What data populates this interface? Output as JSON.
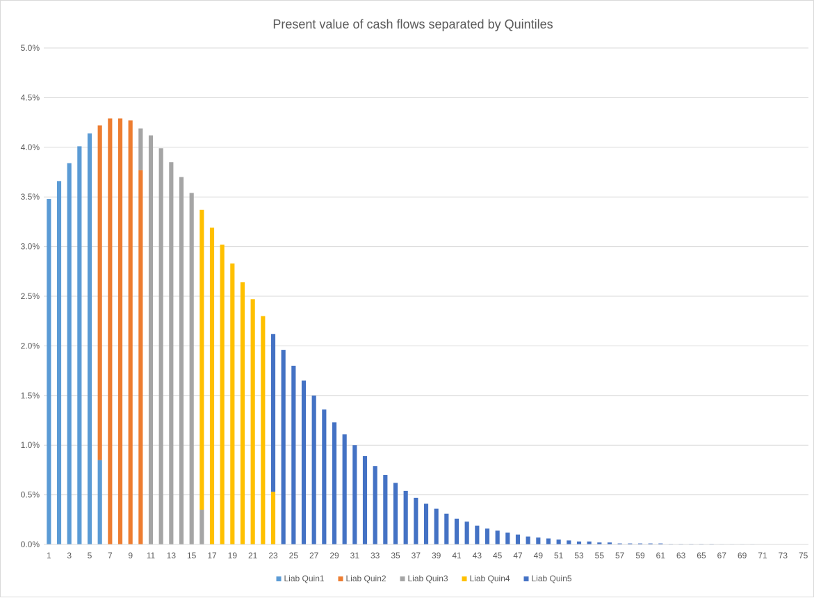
{
  "chart_data": {
    "type": "bar",
    "stacked": true,
    "title": "Present value of cash flows separated by Quintiles",
    "xlabel": "",
    "ylabel": "",
    "ylim": [
      0,
      0.05
    ],
    "y_tick_values": [
      0,
      0.005,
      0.01,
      0.015,
      0.02,
      0.025,
      0.03,
      0.035,
      0.04,
      0.045,
      0.05
    ],
    "y_tick_labels": [
      "0.0%",
      "0.5%",
      "1.0%",
      "1.5%",
      "2.0%",
      "2.5%",
      "3.0%",
      "3.5%",
      "4.0%",
      "4.5%",
      "5.0%"
    ],
    "x_tick_labels": [
      "1",
      "3",
      "5",
      "7",
      "9",
      "11",
      "13",
      "15",
      "17",
      "19",
      "21",
      "23",
      "25",
      "27",
      "29",
      "31",
      "33",
      "35",
      "37",
      "39",
      "41",
      "43",
      "45",
      "47",
      "49",
      "51",
      "53",
      "55",
      "57",
      "59",
      "61",
      "63",
      "65",
      "67",
      "69",
      "71",
      "73",
      "75"
    ],
    "grid": true,
    "legend_position": "bottom",
    "categories": [
      1,
      2,
      3,
      4,
      5,
      6,
      7,
      8,
      9,
      10,
      11,
      12,
      13,
      14,
      15,
      16,
      17,
      18,
      19,
      20,
      21,
      22,
      23,
      24,
      25,
      26,
      27,
      28,
      29,
      30,
      31,
      32,
      33,
      34,
      35,
      36,
      37,
      38,
      39,
      40,
      41,
      42,
      43,
      44,
      45,
      46,
      47,
      48,
      49,
      50,
      51,
      52,
      53,
      54,
      55,
      56,
      57,
      58,
      59,
      60,
      61,
      62,
      63,
      64,
      65,
      66,
      67,
      68,
      69,
      70,
      71,
      72,
      73,
      74,
      75
    ],
    "series": [
      {
        "name": "Liab Quin1",
        "color": "#5B9BD5",
        "values": [
          0.0348,
          0.0366,
          0.0384,
          0.0401,
          0.0414,
          0.0085,
          0,
          0,
          0,
          0,
          0,
          0,
          0,
          0,
          0,
          0,
          0,
          0,
          0,
          0,
          0,
          0,
          0,
          0,
          0,
          0,
          0,
          0,
          0,
          0,
          0,
          0,
          0,
          0,
          0,
          0,
          0,
          0,
          0,
          0,
          0,
          0,
          0,
          0,
          0,
          0,
          0,
          0,
          0,
          0,
          0,
          0,
          0,
          0,
          0,
          0,
          0,
          0,
          0,
          0,
          0,
          0,
          0,
          0,
          0,
          0,
          0,
          0,
          0,
          0,
          0,
          0,
          0,
          0,
          0
        ]
      },
      {
        "name": "Liab Quin2",
        "color": "#ED7D31",
        "values": [
          0,
          0,
          0,
          0,
          0,
          0.0337,
          0.0429,
          0.0429,
          0.0427,
          0.0377,
          0,
          0,
          0,
          0,
          0,
          0,
          0,
          0,
          0,
          0,
          0,
          0,
          0,
          0,
          0,
          0,
          0,
          0,
          0,
          0,
          0,
          0,
          0,
          0,
          0,
          0,
          0,
          0,
          0,
          0,
          0,
          0,
          0,
          0,
          0,
          0,
          0,
          0,
          0,
          0,
          0,
          0,
          0,
          0,
          0,
          0,
          0,
          0,
          0,
          0,
          0,
          0,
          0,
          0,
          0,
          0,
          0,
          0,
          0,
          0,
          0,
          0,
          0,
          0,
          0
        ]
      },
      {
        "name": "Liab Quin3",
        "color": "#A5A5A5",
        "values": [
          0,
          0,
          0,
          0,
          0,
          0,
          0,
          0,
          0,
          0.0042,
          0.0412,
          0.0399,
          0.0385,
          0.037,
          0.0354,
          0.0035,
          0,
          0,
          0,
          0,
          0,
          0,
          0,
          0,
          0,
          0,
          0,
          0,
          0,
          0,
          0,
          0,
          0,
          0,
          0,
          0,
          0,
          0,
          0,
          0,
          0,
          0,
          0,
          0,
          0,
          0,
          0,
          0,
          0,
          0,
          0,
          0,
          0,
          0,
          0,
          0,
          0,
          0,
          0,
          0,
          0,
          0,
          0,
          0,
          0,
          0,
          0,
          0,
          0,
          0,
          0,
          0,
          0,
          0,
          0
        ]
      },
      {
        "name": "Liab Quin4",
        "color": "#FFC000",
        "values": [
          0,
          0,
          0,
          0,
          0,
          0,
          0,
          0,
          0,
          0,
          0,
          0,
          0,
          0,
          0,
          0.0302,
          0.0319,
          0.0302,
          0.0283,
          0.0264,
          0.0247,
          0.023,
          0.0053,
          0,
          0,
          0,
          0,
          0,
          0,
          0,
          0,
          0,
          0,
          0,
          0,
          0,
          0,
          0,
          0,
          0,
          0,
          0,
          0,
          0,
          0,
          0,
          0,
          0,
          0,
          0,
          0,
          0,
          0,
          0,
          0,
          0,
          0,
          0,
          0,
          0,
          0,
          0,
          0,
          0,
          0,
          0,
          0,
          0,
          0,
          0,
          0,
          0,
          0,
          0,
          0
        ]
      },
      {
        "name": "Liab Quin5",
        "color": "#4472C4",
        "values": [
          0,
          0,
          0,
          0,
          0,
          0,
          0,
          0,
          0,
          0,
          0,
          0,
          0,
          0,
          0,
          0,
          0,
          0,
          0,
          0,
          0,
          0,
          0.0159,
          0.0196,
          0.018,
          0.0165,
          0.015,
          0.0136,
          0.0123,
          0.0111,
          0.01,
          0.0089,
          0.0079,
          0.007,
          0.0062,
          0.0054,
          0.0047,
          0.0041,
          0.0036,
          0.0031,
          0.0026,
          0.0023,
          0.0019,
          0.0016,
          0.0014,
          0.0012,
          0.001,
          0.0008,
          0.0007,
          0.0006,
          0.0005,
          0.0004,
          0.0003,
          0.0003,
          0.0002,
          0.0002,
          0.0001,
          0.0001,
          0.0001,
          0.0001,
          0.0001,
          5e-05,
          5e-05,
          5e-05,
          5e-05,
          5e-05,
          4e-05,
          4e-05,
          4e-05,
          4e-05,
          3e-05,
          3e-05,
          3e-05,
          3e-05,
          3e-05
        ]
      }
    ]
  }
}
